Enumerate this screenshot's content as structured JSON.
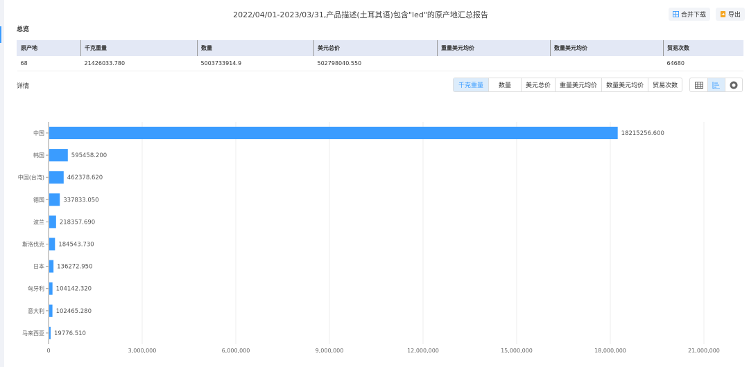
{
  "title": "2022/04/01-2023/03/31,产品描述(土耳其语)包含\"led\"的原产地汇总报告",
  "buttons": {
    "merge_download": "合并下载",
    "export": "导出"
  },
  "overview": {
    "label": "总览",
    "headers": [
      "原产地",
      "千克重量",
      "数量",
      "美元总价",
      "重量美元均价",
      "数量美元均价",
      "贸易次数"
    ],
    "row": [
      "68",
      "21426033.780",
      "5003733914.9",
      "502798040.550",
      "",
      "",
      "64680"
    ]
  },
  "details": {
    "label": "详情",
    "tabs": [
      "千克重量",
      "数量",
      "美元总价",
      "重量美元均价",
      "数量美元均价",
      "贸易次数"
    ],
    "active_tab": "千克重量",
    "views": [
      {
        "icon": "table-icon"
      },
      {
        "icon": "bar-chart-icon",
        "active": true
      },
      {
        "icon": "donut-icon"
      }
    ]
  },
  "colors": {
    "accent": "#3a9cff",
    "bar": "#3a9cff"
  },
  "chart_data": {
    "type": "bar",
    "orientation": "horizontal",
    "categories": [
      "中国",
      "韩国",
      "中国(台湾)",
      "德国",
      "波兰",
      "斯洛伐克",
      "日本",
      "匈牙利",
      "意大利",
      "马来西亚"
    ],
    "values": [
      18215256.6,
      595458.2,
      462378.62,
      337833.05,
      218357.69,
      184543.73,
      136272.95,
      104142.32,
      102465.28,
      19776.51
    ],
    "labels": [
      "18215256.600",
      "595458.200",
      "462378.620",
      "337833.050",
      "218357.690",
      "184543.730",
      "136272.950",
      "104142.320",
      "102465.280",
      "19776.510"
    ],
    "xlim": [
      0,
      21000000
    ],
    "xticks": [
      "0",
      "3,000,000",
      "6,000,000",
      "9,000,000",
      "12,000,000",
      "15,000,000",
      "18,000,000",
      "21,000,000"
    ],
    "grid": true
  }
}
